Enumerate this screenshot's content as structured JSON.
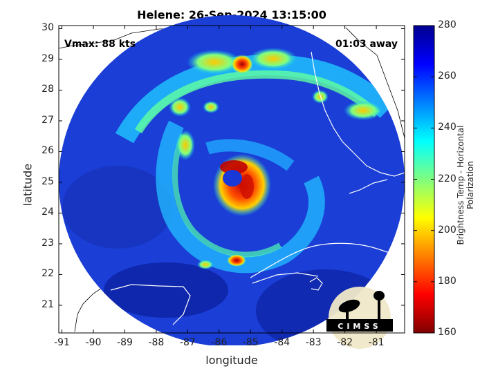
{
  "title": "Helene: 26-Sep-2024 13:15:00",
  "annotation_left": "Vmax: 88 kts",
  "annotation_right": "01:03 away",
  "logo_text": "CIMSS",
  "colors": {
    "background": "#ffffff",
    "coast": "#ffffff",
    "land_coast_outside": "#000000"
  },
  "map": {
    "xlabel": "longitude",
    "ylabel": "latitude",
    "lon_range": [
      -91.1,
      -80.1
    ],
    "lat_range": [
      20.1,
      30.1
    ],
    "x_ticks": [
      -91,
      -90,
      -89,
      -88,
      -87,
      -86,
      -85,
      -84,
      -83,
      -82,
      -81
    ],
    "y_ticks": [
      21,
      22,
      23,
      24,
      25,
      26,
      27,
      28,
      29,
      30
    ],
    "x_tick_labels": [
      "-91",
      "-90",
      "-89",
      "-88",
      "-87",
      "-86",
      "-85",
      "-84",
      "-83",
      "-82",
      "-81"
    ],
    "y_tick_labels": [
      "21",
      "22",
      "23",
      "24",
      "25",
      "26",
      "27",
      "28",
      "29",
      "30"
    ],
    "storm_center": {
      "lon": -85.3,
      "lat": 25.0
    },
    "swath_center": {
      "lon": -85.6,
      "lat": 25.2
    }
  },
  "colorbar": {
    "label": "Brightness Temp - Horizontal Polarization",
    "range": [
      160,
      280
    ],
    "ticks": [
      160,
      180,
      200,
      220,
      240,
      260,
      280
    ],
    "tick_labels": [
      "160",
      "180",
      "200",
      "220",
      "240",
      "260",
      "280"
    ],
    "colormap": "jet"
  }
}
